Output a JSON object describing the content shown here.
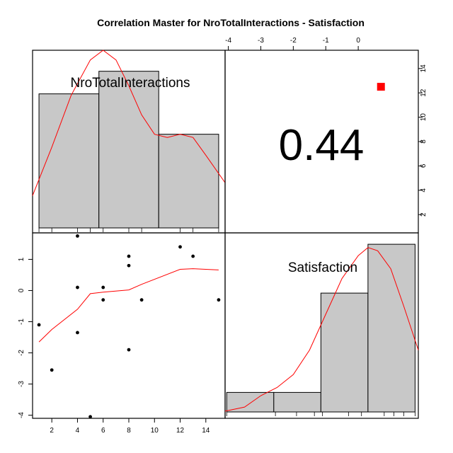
{
  "title": "Correlation Master for NroTotalInteractions - Satisfaction",
  "colors": {
    "bar_fill": "#c8c8c8",
    "curve": "#ff0000",
    "marker": "#ff0000",
    "point": "#000000"
  },
  "chart_data": {
    "type": "scatter",
    "variables": [
      "NroTotalInteractions",
      "Satisfaction"
    ],
    "correlation": {
      "label": "0.44",
      "value": 0.44,
      "significance_marker": {
        "shape": "square",
        "x": 0.7,
        "y": 12.5
      }
    },
    "upper_axes": {
      "x_ticks": [
        -4,
        -3,
        -2,
        -1,
        0
      ],
      "y_ticks": [
        2,
        4,
        6,
        8,
        10,
        12,
        14
      ],
      "xlim": [
        -4.1,
        1.85
      ],
      "ylim": [
        0.5,
        15.5
      ]
    },
    "lower_axes": {
      "x_ticks": [
        2,
        4,
        6,
        8,
        10,
        12,
        14
      ],
      "y_ticks": [
        -4,
        -3,
        -2,
        -1,
        0,
        1
      ],
      "xlim": [
        0.5,
        15.5
      ],
      "ylim": [
        -4.1,
        1.85
      ]
    },
    "scatter_points": [
      {
        "x": 1,
        "y": -1.1
      },
      {
        "x": 2,
        "y": -2.55
      },
      {
        "x": 4,
        "y": 1.75
      },
      {
        "x": 4,
        "y": 0.1
      },
      {
        "x": 4,
        "y": -1.35
      },
      {
        "x": 5,
        "y": -4.05
      },
      {
        "x": 6,
        "y": 0.1
      },
      {
        "x": 6,
        "y": -0.3
      },
      {
        "x": 8,
        "y": 1.1
      },
      {
        "x": 8,
        "y": 0.8
      },
      {
        "x": 8,
        "y": -1.9
      },
      {
        "x": 9,
        "y": -0.3
      },
      {
        "x": 12,
        "y": 1.4
      },
      {
        "x": 13,
        "y": 1.1
      },
      {
        "x": 15,
        "y": -0.3
      }
    ],
    "smooth_line": [
      {
        "x": 1,
        "y": -1.65
      },
      {
        "x": 2,
        "y": -1.25
      },
      {
        "x": 4,
        "y": -0.6
      },
      {
        "x": 5,
        "y": -0.1
      },
      {
        "x": 6,
        "y": -0.05
      },
      {
        "x": 8,
        "y": 0.02
      },
      {
        "x": 9,
        "y": 0.2
      },
      {
        "x": 12,
        "y": 0.68
      },
      {
        "x": 13,
        "y": 0.7
      },
      {
        "x": 15,
        "y": 0.66
      }
    ],
    "histogram_1": {
      "variable": "NroTotalInteractions",
      "bins": [
        {
          "from": 1,
          "to": 5.67,
          "height": 0.83
        },
        {
          "from": 5.67,
          "to": 10.33,
          "height": 0.97
        },
        {
          "from": 10.33,
          "to": 15,
          "height": 0.58
        }
      ],
      "rug": [
        1,
        2,
        4,
        5,
        6,
        8,
        9,
        12,
        13,
        15
      ],
      "density": [
        {
          "x": 0.5,
          "y": 0.2
        },
        {
          "x": 2,
          "y": 0.5
        },
        {
          "x": 3.5,
          "y": 0.82
        },
        {
          "x": 5,
          "y": 1.04
        },
        {
          "x": 6,
          "y": 1.1
        },
        {
          "x": 7,
          "y": 1.04
        },
        {
          "x": 8,
          "y": 0.88
        },
        {
          "x": 9,
          "y": 0.7
        },
        {
          "x": 10,
          "y": 0.58
        },
        {
          "x": 11,
          "y": 0.56
        },
        {
          "x": 12,
          "y": 0.58
        },
        {
          "x": 13,
          "y": 0.56
        },
        {
          "x": 14,
          "y": 0.45
        },
        {
          "x": 15.5,
          "y": 0.28
        }
      ]
    },
    "histogram_2": {
      "variable": "Satisfaction",
      "bins": [
        {
          "from": -4.05,
          "to": -2.6,
          "height": 0.12
        },
        {
          "from": -2.6,
          "to": -1.15,
          "height": 0.12
        },
        {
          "from": -1.15,
          "to": 0.3,
          "height": 0.73
        },
        {
          "from": 0.3,
          "to": 1.75,
          "height": 1.03
        }
      ],
      "rug": [
        -4.05,
        -2.55,
        -1.9,
        -1.35,
        -1.1,
        -0.3,
        0.1,
        0.8,
        1.1,
        1.4,
        1.75
      ],
      "density": [
        {
          "x": -4.1,
          "y": 0.005
        },
        {
          "x": -3.5,
          "y": 0.03
        },
        {
          "x": -3.0,
          "y": 0.1
        },
        {
          "x": -2.5,
          "y": 0.15
        },
        {
          "x": -2.0,
          "y": 0.23
        },
        {
          "x": -1.5,
          "y": 0.38
        },
        {
          "x": -1.0,
          "y": 0.6
        },
        {
          "x": -0.5,
          "y": 0.82
        },
        {
          "x": 0.0,
          "y": 0.96
        },
        {
          "x": 0.3,
          "y": 1.01
        },
        {
          "x": 0.6,
          "y": 0.99
        },
        {
          "x": 1.0,
          "y": 0.88
        },
        {
          "x": 1.4,
          "y": 0.65
        },
        {
          "x": 1.85,
          "y": 0.38
        }
      ]
    }
  }
}
